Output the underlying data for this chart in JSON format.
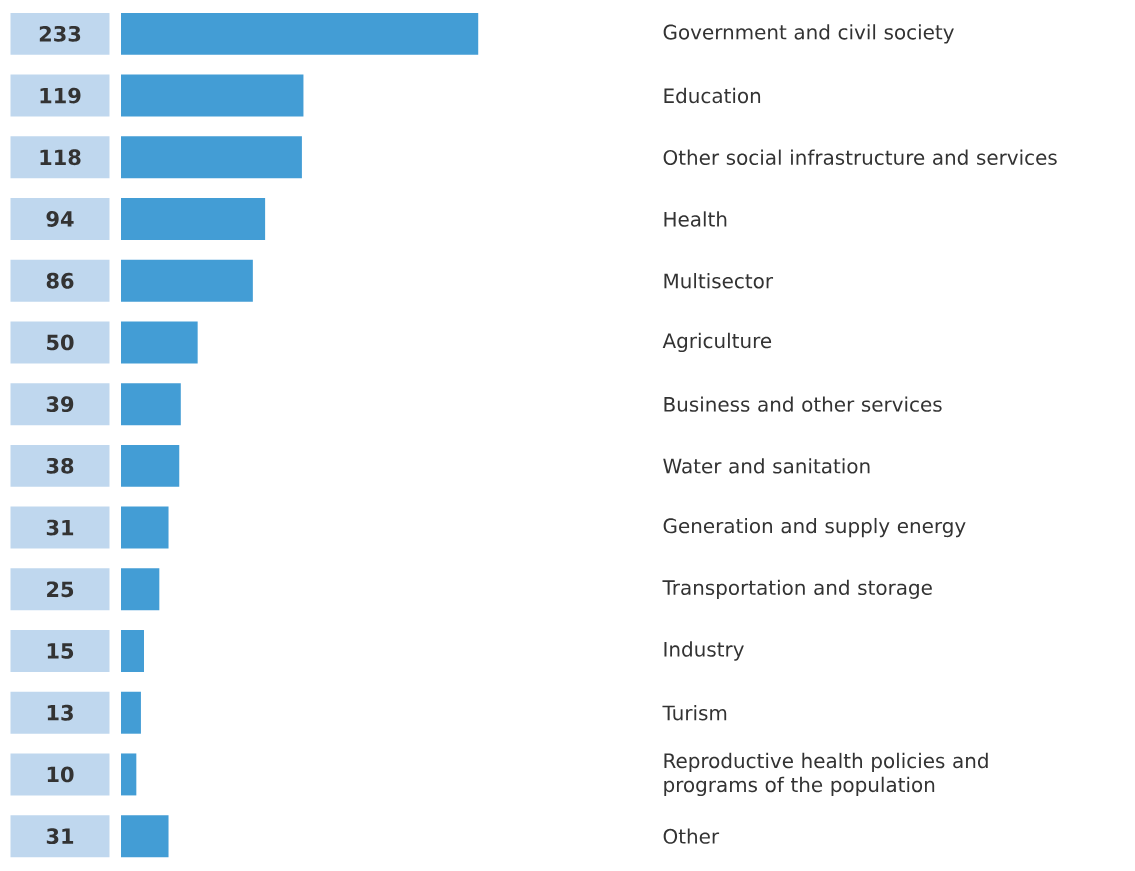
{
  "chart_data": {
    "type": "bar",
    "orientation": "horizontal",
    "color": "#439dd5",
    "categories": [
      "Government and civil society",
      "Education",
      "Other social infrastructure and services",
      "Health",
      "Multisector",
      "Agriculture",
      "Business and other services",
      "Water and sanitation",
      "Generation and supply energy",
      "Transportation and storage",
      "Industry",
      "Turism",
      "Reproductive health policies and programs of the population",
      "Other"
    ],
    "values": [
      233,
      119,
      118,
      94,
      86,
      50,
      39,
      38,
      31,
      25,
      15,
      13,
      10,
      31
    ],
    "tick_labels": "y",
    "data_labels": true
  }
}
